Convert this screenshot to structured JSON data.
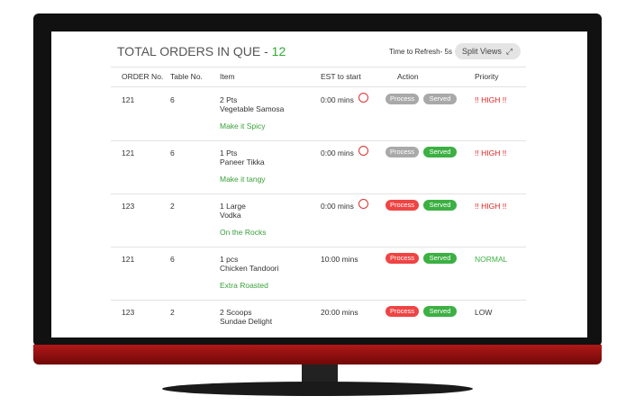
{
  "header": {
    "title": "TOTAL ORDERS IN QUE -",
    "count": 12,
    "refresh": "Time to Refresh- 5s",
    "button": "Split Views"
  },
  "table": {
    "columns": [
      "ORDER No.",
      "Table No.",
      "Item",
      "EST to start",
      "Action",
      "Priority"
    ],
    "actions": [
      "Process",
      "Served"
    ],
    "rows": [
      {
        "order": 121,
        "table": 6,
        "qty": "2 Pts",
        "item": "Vegetable Samosa",
        "note": "Make it Spicy",
        "est": "0:00 mins",
        "alarm": true,
        "process_color": "#a9a9a9",
        "served_color": "#a9a9a9",
        "priority": "!! HIGH !!",
        "priority_color": "#e02020"
      },
      {
        "order": 121,
        "table": 6,
        "qty": "1 Pts",
        "item": "Paneer Tikka",
        "note": "Make it tangy",
        "est": "0:00 mins",
        "alarm": true,
        "process_color": "#a9a9a9",
        "served_color": "#3cb043",
        "priority": "!! HIGH !!",
        "priority_color": "#e02020"
      },
      {
        "order": 123,
        "table": 2,
        "qty": "1 Large",
        "item": "Vodka",
        "note": "On the Rocks",
        "est": "0:00 mins",
        "alarm": true,
        "process_color": "#ef4444",
        "served_color": "#3cb043",
        "priority": "!! HIGH !!",
        "priority_color": "#e02020"
      },
      {
        "order": 121,
        "table": 6,
        "qty": "1 pcs",
        "item": "Chicken Tandoori",
        "note": "Extra Roasted",
        "est": "10:00 mins",
        "alarm": false,
        "process_color": "#ef4444",
        "served_color": "#3cb043",
        "priority": "NORMAL",
        "priority_color": "#3cb043"
      },
      {
        "order": 123,
        "table": 2,
        "qty": "2 Scoops",
        "item": "Sundae Delight",
        "note": "",
        "est": "20:00 mins",
        "alarm": false,
        "process_color": "#ef4444",
        "served_color": "#3cb043",
        "priority": "LOW",
        "priority_color": "#333333"
      }
    ]
  }
}
